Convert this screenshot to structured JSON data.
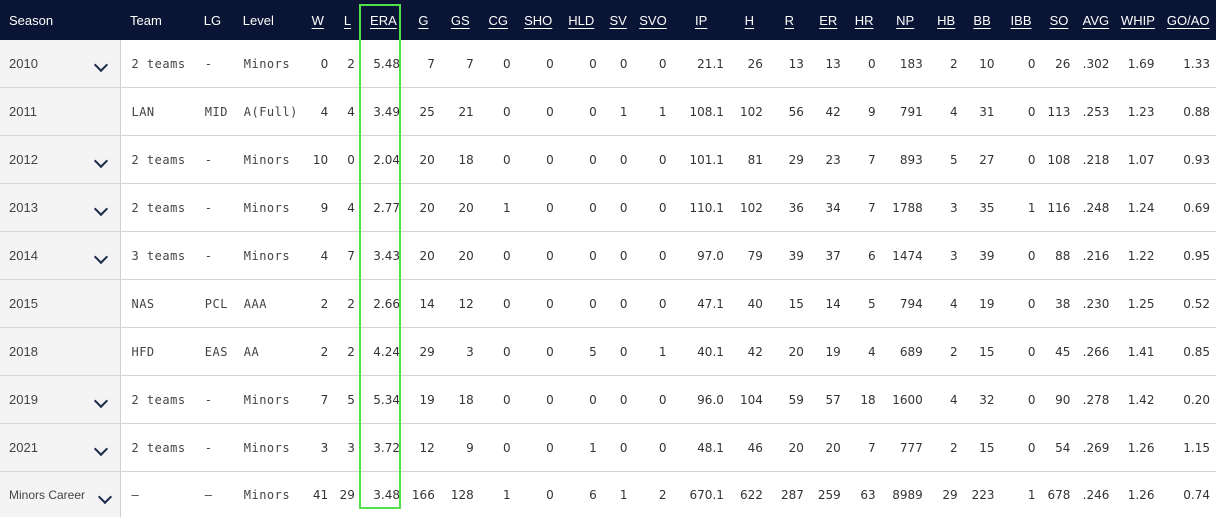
{
  "columns": [
    {
      "key": "season",
      "label": "Season"
    },
    {
      "key": "team",
      "label": "Team"
    },
    {
      "key": "lg",
      "label": "LG"
    },
    {
      "key": "level",
      "label": "Level"
    },
    {
      "key": "w",
      "label": "W"
    },
    {
      "key": "l",
      "label": "L"
    },
    {
      "key": "era",
      "label": "ERA"
    },
    {
      "key": "g",
      "label": "G"
    },
    {
      "key": "gs",
      "label": "GS"
    },
    {
      "key": "cg",
      "label": "CG"
    },
    {
      "key": "sho",
      "label": "SHO"
    },
    {
      "key": "hld",
      "label": "HLD"
    },
    {
      "key": "sv",
      "label": "SV"
    },
    {
      "key": "svo",
      "label": "SVO"
    },
    {
      "key": "ip",
      "label": "IP"
    },
    {
      "key": "h",
      "label": "H"
    },
    {
      "key": "r",
      "label": "R"
    },
    {
      "key": "er",
      "label": "ER"
    },
    {
      "key": "hr",
      "label": "HR"
    },
    {
      "key": "np",
      "label": "NP"
    },
    {
      "key": "hb",
      "label": "HB"
    },
    {
      "key": "bb",
      "label": "BB"
    },
    {
      "key": "ibb",
      "label": "IBB"
    },
    {
      "key": "so",
      "label": "SO"
    },
    {
      "key": "avg",
      "label": "AVG"
    },
    {
      "key": "whip",
      "label": "WHIP"
    },
    {
      "key": "goao",
      "label": "GO/AO"
    }
  ],
  "highlight_color": "#4fe04a",
  "rows": [
    {
      "expandable": true,
      "season": "2010",
      "team": "2 teams",
      "lg": "-",
      "level": "Minors",
      "w": "0",
      "l": "2",
      "era": "5.48",
      "g": "7",
      "gs": "7",
      "cg": "0",
      "sho": "0",
      "hld": "0",
      "sv": "0",
      "svo": "0",
      "ip": "21.1",
      "h": "26",
      "r": "13",
      "er": "13",
      "hr": "0",
      "np": "183",
      "hb": "2",
      "bb": "10",
      "ibb": "0",
      "so": "26",
      "avg": ".302",
      "whip": "1.69",
      "goao": "1.33"
    },
    {
      "expandable": false,
      "season": "2011",
      "team": "LAN",
      "lg": "MID",
      "level": "A(Full)",
      "w": "4",
      "l": "4",
      "era": "3.49",
      "g": "25",
      "gs": "21",
      "cg": "0",
      "sho": "0",
      "hld": "0",
      "sv": "1",
      "svo": "1",
      "ip": "108.1",
      "h": "102",
      "r": "56",
      "er": "42",
      "hr": "9",
      "np": "791",
      "hb": "4",
      "bb": "31",
      "ibb": "0",
      "so": "113",
      "avg": ".253",
      "whip": "1.23",
      "goao": "0.88"
    },
    {
      "expandable": true,
      "season": "2012",
      "team": "2 teams",
      "lg": "-",
      "level": "Minors",
      "w": "10",
      "l": "0",
      "era": "2.04",
      "g": "20",
      "gs": "18",
      "cg": "0",
      "sho": "0",
      "hld": "0",
      "sv": "0",
      "svo": "0",
      "ip": "101.1",
      "h": "81",
      "r": "29",
      "er": "23",
      "hr": "7",
      "np": "893",
      "hb": "5",
      "bb": "27",
      "ibb": "0",
      "so": "108",
      "avg": ".218",
      "whip": "1.07",
      "goao": "0.93"
    },
    {
      "expandable": true,
      "season": "2013",
      "team": "2 teams",
      "lg": "-",
      "level": "Minors",
      "w": "9",
      "l": "4",
      "era": "2.77",
      "g": "20",
      "gs": "20",
      "cg": "1",
      "sho": "0",
      "hld": "0",
      "sv": "0",
      "svo": "0",
      "ip": "110.1",
      "h": "102",
      "r": "36",
      "er": "34",
      "hr": "7",
      "np": "1788",
      "hb": "3",
      "bb": "35",
      "ibb": "1",
      "so": "116",
      "avg": ".248",
      "whip": "1.24",
      "goao": "0.69"
    },
    {
      "expandable": true,
      "season": "2014",
      "team": "3 teams",
      "lg": "-",
      "level": "Minors",
      "w": "4",
      "l": "7",
      "era": "3.43",
      "g": "20",
      "gs": "20",
      "cg": "0",
      "sho": "0",
      "hld": "0",
      "sv": "0",
      "svo": "0",
      "ip": "97.0",
      "h": "79",
      "r": "39",
      "er": "37",
      "hr": "6",
      "np": "1474",
      "hb": "3",
      "bb": "39",
      "ibb": "0",
      "so": "88",
      "avg": ".216",
      "whip": "1.22",
      "goao": "0.95"
    },
    {
      "expandable": false,
      "season": "2015",
      "team": "NAS",
      "lg": "PCL",
      "level": "AAA",
      "w": "2",
      "l": "2",
      "era": "2.66",
      "g": "14",
      "gs": "12",
      "cg": "0",
      "sho": "0",
      "hld": "0",
      "sv": "0",
      "svo": "0",
      "ip": "47.1",
      "h": "40",
      "r": "15",
      "er": "14",
      "hr": "5",
      "np": "794",
      "hb": "4",
      "bb": "19",
      "ibb": "0",
      "so": "38",
      "avg": ".230",
      "whip": "1.25",
      "goao": "0.52"
    },
    {
      "expandable": false,
      "season": "2018",
      "team": "HFD",
      "lg": "EAS",
      "level": "AA",
      "w": "2",
      "l": "2",
      "era": "4.24",
      "g": "29",
      "gs": "3",
      "cg": "0",
      "sho": "0",
      "hld": "5",
      "sv": "0",
      "svo": "1",
      "ip": "40.1",
      "h": "42",
      "r": "20",
      "er": "19",
      "hr": "4",
      "np": "689",
      "hb": "2",
      "bb": "15",
      "ibb": "0",
      "so": "45",
      "avg": ".266",
      "whip": "1.41",
      "goao": "0.85"
    },
    {
      "expandable": true,
      "season": "2019",
      "team": "2 teams",
      "lg": "-",
      "level": "Minors",
      "w": "7",
      "l": "5",
      "era": "5.34",
      "g": "19",
      "gs": "18",
      "cg": "0",
      "sho": "0",
      "hld": "0",
      "sv": "0",
      "svo": "0",
      "ip": "96.0",
      "h": "104",
      "r": "59",
      "er": "57",
      "hr": "18",
      "np": "1600",
      "hb": "4",
      "bb": "32",
      "ibb": "0",
      "so": "90",
      "avg": ".278",
      "whip": "1.42",
      "goao": "0.20"
    },
    {
      "expandable": true,
      "season": "2021",
      "team": "2 teams",
      "lg": "-",
      "level": "Minors",
      "w": "3",
      "l": "3",
      "era": "3.72",
      "g": "12",
      "gs": "9",
      "cg": "0",
      "sho": "0",
      "hld": "1",
      "sv": "0",
      "svo": "0",
      "ip": "48.1",
      "h": "46",
      "r": "20",
      "er": "20",
      "hr": "7",
      "np": "777",
      "hb": "2",
      "bb": "15",
      "ibb": "0",
      "so": "54",
      "avg": ".269",
      "whip": "1.26",
      "goao": "1.15"
    },
    {
      "expandable": true,
      "season": "Minors Career",
      "team": "–",
      "lg": "–",
      "level": "Minors",
      "w": "41",
      "l": "29",
      "era": "3.48",
      "g": "166",
      "gs": "128",
      "cg": "1",
      "sho": "0",
      "hld": "6",
      "sv": "1",
      "svo": "2",
      "ip": "670.1",
      "h": "622",
      "r": "287",
      "er": "259",
      "hr": "63",
      "np": "8989",
      "hb": "29",
      "bb": "223",
      "ibb": "1",
      "so": "678",
      "avg": ".246",
      "whip": "1.26",
      "goao": "0.74"
    }
  ]
}
